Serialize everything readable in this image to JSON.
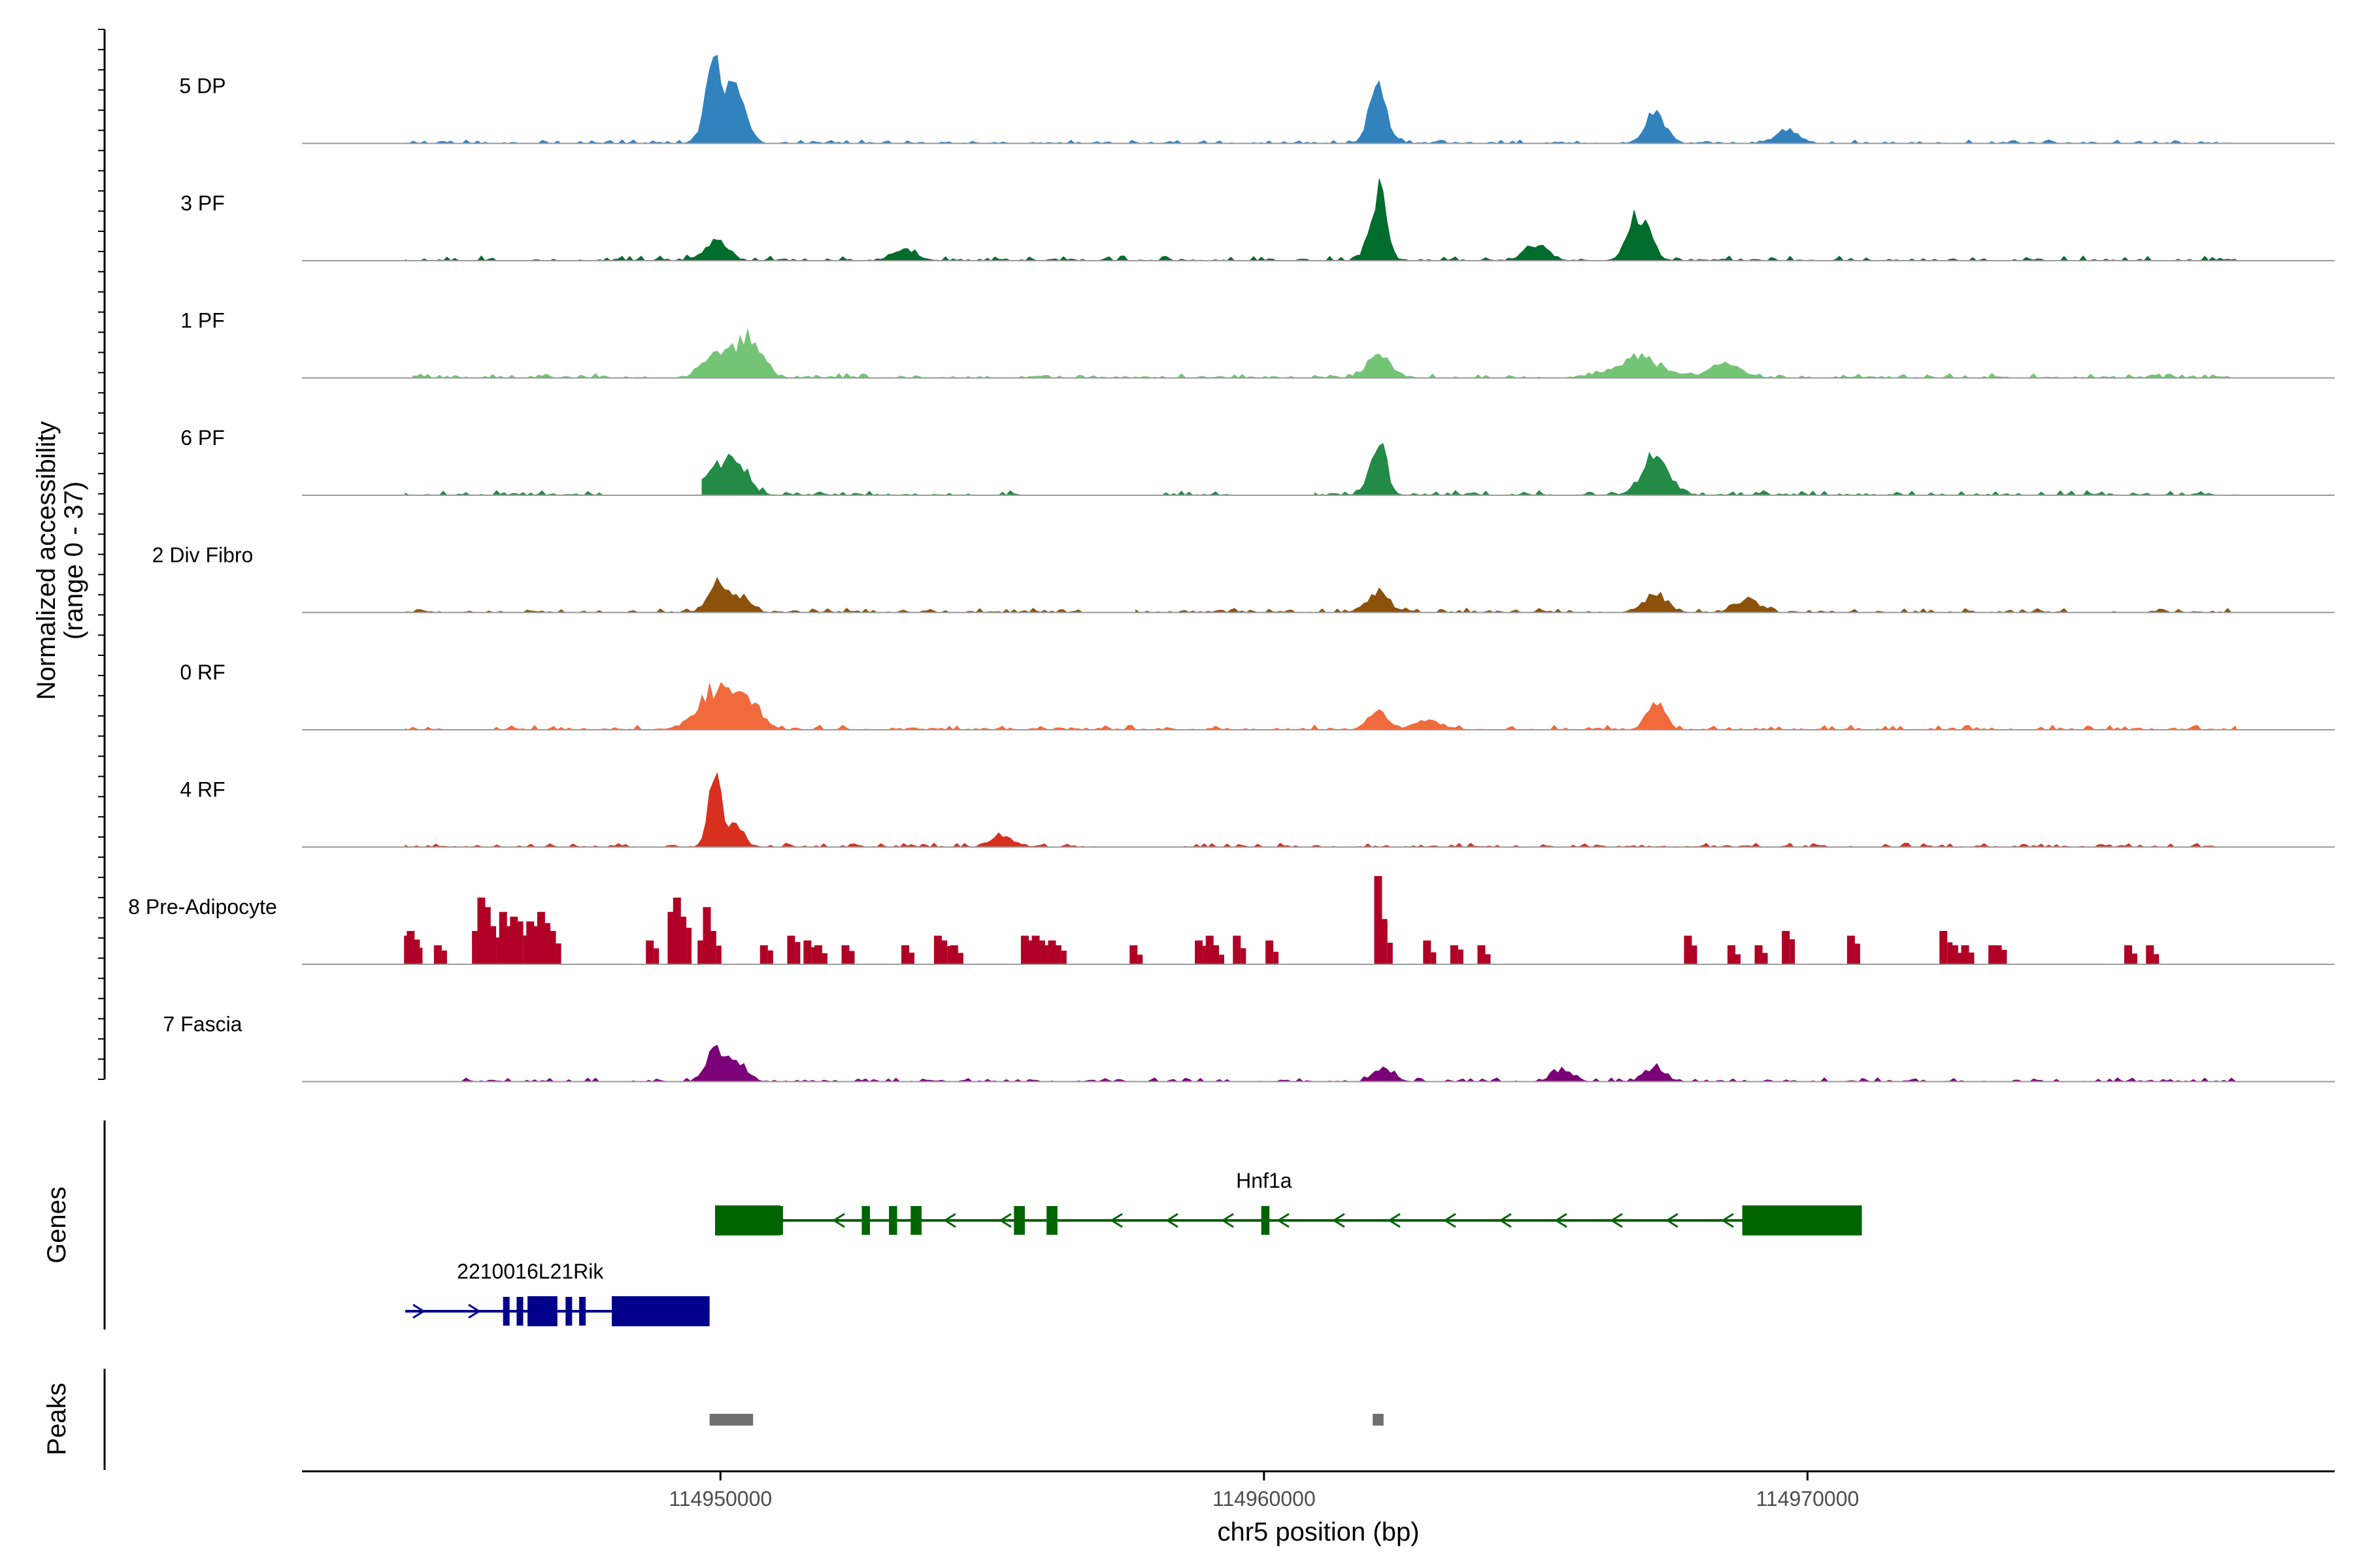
{
  "chart_data": {
    "type": "area",
    "title": "",
    "ylabel": "Normalized accessibility",
    "ylabel_range": "(range 0 - 37)",
    "xlabel": "chr5 position (bp)",
    "xlim": [
      114942300,
      114979700
    ],
    "xticks": [
      114950000,
      114960000,
      114970000
    ],
    "xtick_labels": [
      "114950000",
      "114960000",
      "114970000"
    ],
    "ymax": 37,
    "tracks": [
      {
        "name": "5 DP",
        "color": "#3182BD",
        "seed": 11,
        "base": 0.09,
        "peaks": [
          [
            114949900,
            36,
            250
          ],
          [
            114950300,
            22,
            250
          ],
          [
            114962100,
            30,
            220
          ],
          [
            114967200,
            16,
            260
          ],
          [
            114969600,
            6,
            300
          ]
        ],
        "gaps": []
      },
      {
        "name": "3 PF",
        "color": "#006D2C",
        "seed": 23,
        "base": 0.12,
        "peaks": [
          [
            114962100,
            37,
            200
          ],
          [
            114966900,
            24,
            280
          ],
          [
            114949900,
            9,
            300
          ],
          [
            114953400,
            6,
            300
          ],
          [
            114965000,
            8,
            300
          ]
        ],
        "gaps": []
      },
      {
        "name": "1 PF",
        "color": "#74C476",
        "seed": 37,
        "base": 0.12,
        "peaks": [
          [
            114950500,
            20,
            350
          ],
          [
            114949900,
            14,
            300
          ],
          [
            114962100,
            12,
            300
          ],
          [
            114966900,
            10,
            600
          ],
          [
            114968500,
            7,
            400
          ]
        ],
        "gaps": [
          [
            114944000,
            114944300
          ]
        ]
      },
      {
        "name": "6 PF",
        "color": "#238B45",
        "seed": 41,
        "base": 0.12,
        "peaks": [
          [
            114962100,
            30,
            200
          ],
          [
            114950300,
            18,
            300
          ],
          [
            114949900,
            12,
            300
          ],
          [
            114967200,
            18,
            350
          ]
        ],
        "gaps": [
          [
            114948000,
            114949600
          ],
          [
            114955500,
            114958000
          ],
          [
            114959500,
            114960900
          ]
        ]
      },
      {
        "name": "2 Div Fibro",
        "color": "#8C510A",
        "seed": 53,
        "base": 0.11,
        "peaks": [
          [
            114949900,
            16,
            200
          ],
          [
            114950300,
            8,
            300
          ],
          [
            114962100,
            9,
            300
          ],
          [
            114967200,
            10,
            300
          ],
          [
            114968900,
            7,
            300
          ]
        ],
        "gaps": [
          [
            114956800,
            114957600
          ]
        ]
      },
      {
        "name": "0 RF",
        "color": "#F16A3C",
        "seed": 67,
        "base": 0.12,
        "peaks": [
          [
            114949900,
            20,
            450
          ],
          [
            114950500,
            14,
            350
          ],
          [
            114962100,
            9,
            250
          ],
          [
            114967200,
            14,
            220
          ],
          [
            114963000,
            5,
            300
          ]
        ],
        "gaps": []
      },
      {
        "name": "4 RF",
        "color": "#D7301F",
        "seed": 71,
        "base": 0.1,
        "peaks": [
          [
            114949900,
            37,
            160
          ],
          [
            114950300,
            12,
            180
          ],
          [
            114955200,
            5,
            300
          ]
        ],
        "gaps": [
          [
            114957000,
            114958300
          ]
        ]
      },
      {
        "name": "8 Pre-Adipocyte",
        "color": "#B10026",
        "seed": 83,
        "base": 0.0,
        "bars": [
          [
            114944250,
            12
          ],
          [
            114944300,
            14
          ],
          [
            114944350,
            10
          ],
          [
            114944800,
            8
          ],
          [
            114945500,
            14
          ],
          [
            114945600,
            28
          ],
          [
            114945700,
            24
          ],
          [
            114945800,
            16
          ],
          [
            114946000,
            22
          ],
          [
            114946100,
            16
          ],
          [
            114946200,
            20
          ],
          [
            114946300,
            18
          ],
          [
            114946500,
            18
          ],
          [
            114946600,
            16
          ],
          [
            114946700,
            22
          ],
          [
            114946800,
            16
          ],
          [
            114946900,
            14
          ],
          [
            114948700,
            10
          ],
          [
            114949100,
            22
          ],
          [
            114949200,
            28
          ],
          [
            114949300,
            20
          ],
          [
            114949650,
            10
          ],
          [
            114949750,
            24
          ],
          [
            114949850,
            14
          ],
          [
            114950800,
            8
          ],
          [
            114951300,
            12
          ],
          [
            114951600,
            10
          ],
          [
            114951800,
            8
          ],
          [
            114952300,
            8
          ],
          [
            114953400,
            8
          ],
          [
            114954000,
            12
          ],
          [
            114954100,
            10
          ],
          [
            114954300,
            8
          ],
          [
            114955600,
            12
          ],
          [
            114955700,
            10
          ],
          [
            114955800,
            12
          ],
          [
            114955900,
            10
          ],
          [
            114956000,
            8
          ],
          [
            114956100,
            10
          ],
          [
            114956200,
            8
          ],
          [
            114957600,
            8
          ],
          [
            114958800,
            10
          ],
          [
            114959000,
            12
          ],
          [
            114959100,
            8
          ],
          [
            114959500,
            12
          ],
          [
            114960100,
            10
          ],
          [
            114962100,
            37
          ],
          [
            114962200,
            18
          ],
          [
            114963000,
            10
          ],
          [
            114963500,
            8
          ],
          [
            114964000,
            8
          ],
          [
            114967800,
            12
          ],
          [
            114968600,
            8
          ],
          [
            114969100,
            8
          ],
          [
            114969600,
            14
          ],
          [
            114970800,
            12
          ],
          [
            114972500,
            14
          ],
          [
            114972700,
            8
          ],
          [
            114972900,
            8
          ],
          [
            114973400,
            8
          ],
          [
            114973500,
            8
          ],
          [
            114975900,
            8
          ],
          [
            114976300,
            8
          ]
        ],
        "gaps": []
      },
      {
        "name": "7 Fascia",
        "color": "#7A0177",
        "seed": 97,
        "base": 0.1,
        "peaks": [
          [
            114949900,
            17,
            220
          ],
          [
            114950300,
            10,
            250
          ],
          [
            114962200,
            7,
            250
          ],
          [
            114967200,
            8,
            250
          ],
          [
            114965500,
            6,
            250
          ]
        ],
        "gaps": [
          [
            114942300,
            114945200
          ],
          [
            114948000,
            114948300
          ],
          [
            114949900,
            114949900
          ]
        ]
      }
    ]
  },
  "genes": {
    "label": "Genes",
    "items": [
      {
        "name": "Hnf1a",
        "strand": "-",
        "color": "#006400",
        "start": 114949900,
        "end": 114971000,
        "exons": [
          [
            114949900,
            114951100
          ],
          [
            114950700,
            114950900
          ],
          [
            114951000,
            114951150
          ],
          [
            114952600,
            114952750
          ],
          [
            114953100,
            114953250
          ],
          [
            114953500,
            114953700
          ],
          [
            114955400,
            114955600
          ],
          [
            114956000,
            114956200
          ],
          [
            114959950,
            114960100
          ],
          [
            114968800,
            114971000
          ]
        ],
        "thick": [
          [
            114949900,
            114951100
          ],
          [
            114968800,
            114971000
          ]
        ]
      },
      {
        "name": "2210016L21Rik",
        "strand": "+",
        "color": "#00008B",
        "start": 114944200,
        "end": 114949800,
        "exons": [
          [
            114946000,
            114946100
          ],
          [
            114946250,
            114946350
          ],
          [
            114946450,
            114947000
          ],
          [
            114947150,
            114947250
          ],
          [
            114947400,
            114947500
          ],
          [
            114948000,
            114949800
          ]
        ],
        "thick": [
          [
            114946450,
            114947000
          ],
          [
            114948000,
            114949800
          ]
        ]
      }
    ]
  },
  "peaks": {
    "label": "Peaks",
    "items": [
      [
        114949800,
        114950600
      ],
      [
        114962000,
        114962200
      ]
    ]
  }
}
